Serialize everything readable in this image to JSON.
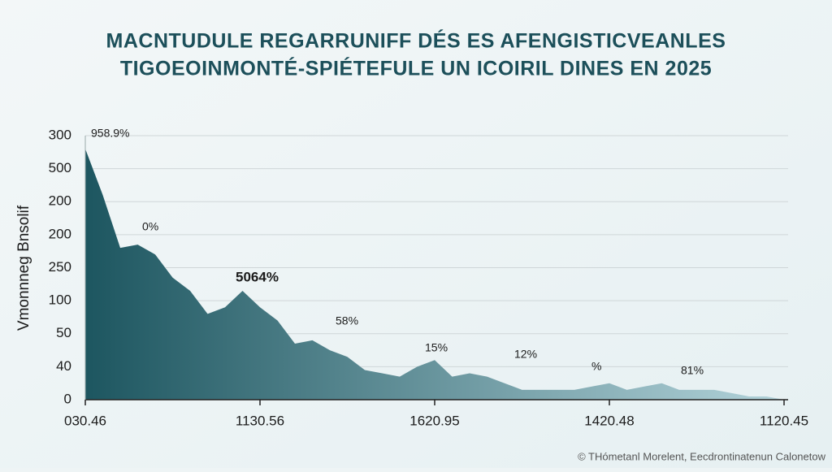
{
  "chart_data": {
    "type": "area",
    "title": [
      "MACNTUDULE REGARRUNIFF DÉS ES AFENGISTICVEANLES",
      "TIGOEOINMONTÉ-SPIÉTEFULE UN ICOIRIL DINES EN 2025"
    ],
    "y_label": "Vmonnneg Bnsolif",
    "footer": "© THómetanl Morelent, Eecdrontinatenun Calonetow",
    "x": [
      0,
      1,
      2,
      3,
      4,
      5,
      6,
      7,
      8,
      9,
      10,
      11,
      12,
      13,
      14,
      15,
      16,
      17,
      18,
      19,
      20,
      21,
      22,
      23,
      24,
      25,
      26,
      27,
      28,
      29,
      30,
      31,
      32,
      33,
      34,
      35,
      36,
      37,
      38,
      39,
      40
    ],
    "values": [
      7.6,
      6.2,
      4.6,
      4.7,
      4.4,
      3.7,
      3.3,
      2.6,
      2.8,
      3.3,
      2.8,
      2.4,
      1.7,
      1.8,
      1.5,
      1.3,
      0.9,
      0.8,
      0.7,
      1.0,
      1.2,
      0.7,
      0.8,
      0.7,
      0.5,
      0.3,
      0.3,
      0.3,
      0.3,
      0.4,
      0.5,
      0.3,
      0.4,
      0.5,
      0.3,
      0.3,
      0.3,
      0.2,
      0.1,
      0.1,
      0
    ],
    "color": "#1d5660",
    "color_end": "#b3d3da",
    "xlim": [
      0,
      40
    ],
    "xticks": [
      {
        "value": 0,
        "label": "030.46"
      },
      {
        "value": 10,
        "label": "1130.56"
      },
      {
        "value": 20,
        "label": "1620.95"
      },
      {
        "value": 30,
        "label": "1420.48"
      },
      {
        "value": 40,
        "label": "1120.45"
      }
    ],
    "ylim": [
      0,
      8
    ],
    "yticks": [
      {
        "value": 0,
        "label": "0"
      },
      {
        "value": 1,
        "label": "40"
      },
      {
        "value": 2,
        "label": "50"
      },
      {
        "value": 3,
        "label": "100"
      },
      {
        "value": 4,
        "label": "250"
      },
      {
        "value": 5,
        "label": "200"
      },
      {
        "value": 6,
        "label": "200"
      },
      {
        "value": 7,
        "label": "500"
      },
      {
        "value": 8,
        "label": "300"
      }
    ],
    "grid": true,
    "annotations": [
      "958.9%",
      "0%",
      "5064%",
      "58%",
      "15%",
      "12%",
      "%",
      "81%"
    ]
  }
}
